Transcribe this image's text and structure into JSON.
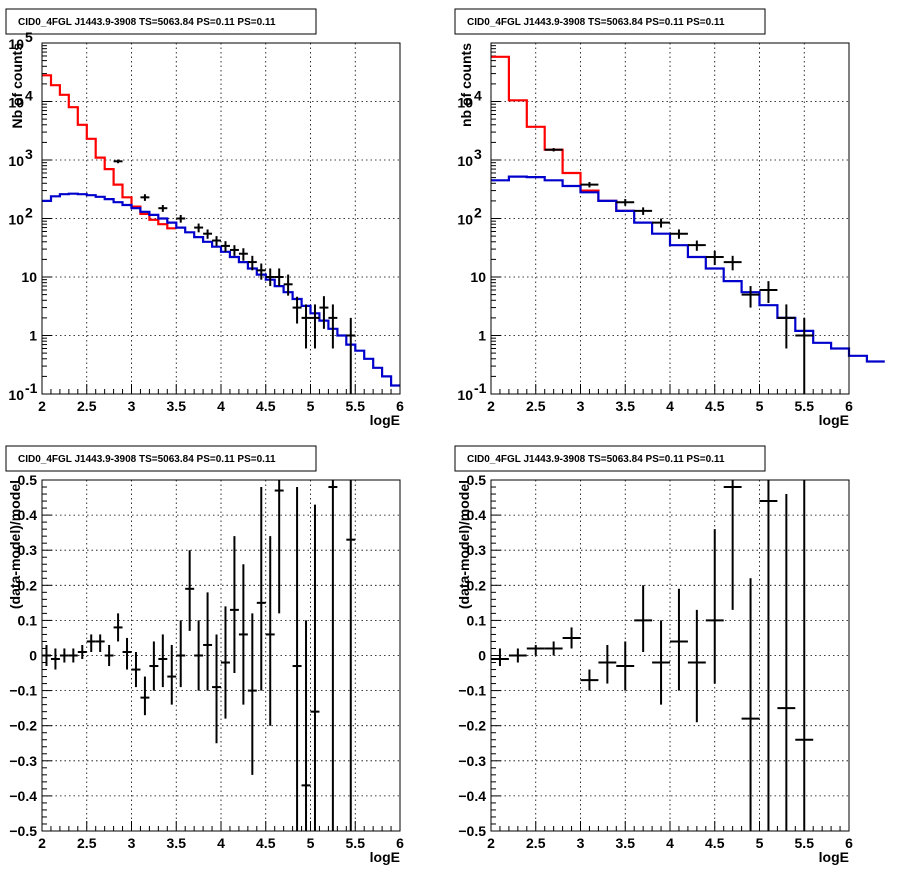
{
  "chart_data": [
    {
      "id": "tl",
      "type": "histogram",
      "title": "CID0_4FGL J1443.9-3908 TS=5063.84 PS=0.11 PS=0.11",
      "xlabel": "logE",
      "ylabel": "Nb of counts",
      "xlim": [
        2,
        6
      ],
      "ylim": [
        0.1,
        100000
      ],
      "yscale": "log",
      "grid": true,
      "xticks": [
        "2",
        "2.5",
        "3",
        "3.5",
        "4",
        "4.5",
        "5",
        "5.5",
        "6"
      ],
      "yticks": [
        {
          "v": 0.1,
          "t": "10"
        },
        {
          "v": 1,
          "t": "1"
        },
        {
          "v": 10,
          "t": "10"
        },
        {
          "v": 100,
          "t": "10"
        },
        {
          "v": 1000,
          "t": "10"
        },
        {
          "v": 10000,
          "t": "10"
        },
        {
          "v": 100000,
          "t": "10"
        }
      ],
      "yticks_sup": [
        "-1",
        "",
        "",
        "2",
        "3",
        "4",
        "5"
      ],
      "binwidth": 0.1,
      "series": [
        {
          "color": "#ff0000",
          "x0": 2.0,
          "values": [
            28000,
            19000,
            13000,
            8000,
            4000,
            2300,
            1100,
            700,
            380,
            230,
            160,
            120,
            95,
            80,
            68
          ]
        },
        {
          "color": "#0000cc",
          "x0": 2.0,
          "values": [
            200,
            240,
            260,
            265,
            260,
            250,
            235,
            215,
            190,
            170,
            150,
            130,
            115,
            100,
            85,
            70,
            58,
            48,
            40,
            33,
            27,
            22,
            18,
            14,
            11,
            9,
            7,
            5.5,
            4.2,
            3.2,
            2.4,
            1.8,
            1.3,
            1.0,
            0.7,
            0.55,
            0.4,
            0.28,
            0.2,
            0.14
          ]
        }
      ],
      "points": [
        {
          "x": 2.85,
          "y": 950,
          "ylo": 880,
          "yhi": 1020
        },
        {
          "x": 3.15,
          "y": 230,
          "ylo": 200,
          "yhi": 260
        },
        {
          "x": 3.35,
          "y": 150,
          "ylo": 130,
          "yhi": 170
        },
        {
          "x": 3.55,
          "y": 100,
          "ylo": 85,
          "yhi": 115
        },
        {
          "x": 3.75,
          "y": 70,
          "ylo": 58,
          "yhi": 82
        },
        {
          "x": 3.85,
          "y": 55,
          "ylo": 45,
          "yhi": 65
        },
        {
          "x": 3.95,
          "y": 42,
          "ylo": 34,
          "yhi": 50
        },
        {
          "x": 4.05,
          "y": 34,
          "ylo": 27,
          "yhi": 41
        },
        {
          "x": 4.15,
          "y": 29,
          "ylo": 23,
          "yhi": 35
        },
        {
          "x": 4.25,
          "y": 25,
          "ylo": 19,
          "yhi": 31
        },
        {
          "x": 4.35,
          "y": 18,
          "ylo": 13,
          "yhi": 23
        },
        {
          "x": 4.45,
          "y": 13,
          "ylo": 9,
          "yhi": 17
        },
        {
          "x": 4.55,
          "y": 10,
          "ylo": 7,
          "yhi": 14
        },
        {
          "x": 4.65,
          "y": 10,
          "ylo": 7,
          "yhi": 14
        },
        {
          "x": 4.75,
          "y": 7.5,
          "ylo": 4.8,
          "yhi": 11
        },
        {
          "x": 4.85,
          "y": 3,
          "ylo": 1.6,
          "yhi": 4.6
        },
        {
          "x": 4.95,
          "y": 2,
          "ylo": 0.6,
          "yhi": 3.4
        },
        {
          "x": 5.05,
          "y": 2,
          "ylo": 0.6,
          "yhi": 3.4
        },
        {
          "x": 5.15,
          "y": 3,
          "ylo": 1.3,
          "yhi": 4.7
        },
        {
          "x": 5.25,
          "y": 2,
          "ylo": 0.6,
          "yhi": 3.4
        },
        {
          "x": 5.45,
          "y": 1,
          "ylo": 0.1,
          "yhi": 2.0
        }
      ]
    },
    {
      "id": "tr",
      "type": "histogram",
      "title": "CID0_4FGL J1443.9-3908 TS=5063.84 PS=0.11 PS=0.11",
      "xlabel": "logE",
      "ylabel": "nb of counts",
      "xlim": [
        2,
        6
      ],
      "ylim": [
        0.1,
        100000
      ],
      "yscale": "log",
      "grid": true,
      "xticks": [
        "2",
        "2.5",
        "3",
        "3.5",
        "4",
        "4.5",
        "5",
        "5.5",
        "6"
      ],
      "yticks": [
        {
          "v": 0.1,
          "t": "10"
        },
        {
          "v": 1,
          "t": "1"
        },
        {
          "v": 10,
          "t": "10"
        },
        {
          "v": 100,
          "t": "10"
        },
        {
          "v": 1000,
          "t": "10"
        },
        {
          "v": 10000,
          "t": "10"
        }
      ],
      "yticks_sup": [
        "-1",
        "",
        "",
        "2",
        "3",
        "4"
      ],
      "binwidth": 0.2,
      "series": [
        {
          "color": "#ff0000",
          "x0": 2.0,
          "values": [
            58000,
            10500,
            3700,
            1500,
            600,
            300,
            200,
            135
          ]
        },
        {
          "color": "#0000cc",
          "x0": 2.0,
          "values": [
            450,
            520,
            510,
            450,
            360,
            280,
            200,
            135,
            85,
            55,
            35,
            22,
            14,
            8.5,
            5.5,
            3.3,
            2.0,
            1.2,
            0.75,
            0.6,
            0.45,
            0.36
          ]
        }
      ],
      "points": [
        {
          "x": 2.7,
          "y": 1500,
          "ylo": 1400,
          "yhi": 1600
        },
        {
          "x": 3.1,
          "y": 380,
          "ylo": 340,
          "yhi": 420
        },
        {
          "x": 3.5,
          "y": 190,
          "ylo": 165,
          "yhi": 215
        },
        {
          "x": 3.7,
          "y": 135,
          "ylo": 115,
          "yhi": 155
        },
        {
          "x": 3.9,
          "y": 85,
          "ylo": 70,
          "yhi": 100
        },
        {
          "x": 4.1,
          "y": 55,
          "ylo": 45,
          "yhi": 65
        },
        {
          "x": 4.3,
          "y": 35,
          "ylo": 28,
          "yhi": 42
        },
        {
          "x": 4.5,
          "y": 22,
          "ylo": 16,
          "yhi": 28
        },
        {
          "x": 4.7,
          "y": 18,
          "ylo": 13,
          "yhi": 23
        },
        {
          "x": 4.9,
          "y": 5,
          "ylo": 3,
          "yhi": 7
        },
        {
          "x": 5.1,
          "y": 6,
          "ylo": 3.6,
          "yhi": 8.5
        },
        {
          "x": 5.3,
          "y": 2,
          "ylo": 0.6,
          "yhi": 3.4
        },
        {
          "x": 5.5,
          "y": 1,
          "ylo": 0.1,
          "yhi": 2.0
        }
      ]
    },
    {
      "id": "bl",
      "type": "scatter",
      "title": "CID0_4FGL J1443.9-3908 TS=5063.84 PS=0.11 PS=0.11",
      "xlabel": "logE",
      "ylabel": "(data-model)/model",
      "xlim": [
        2,
        6
      ],
      "ylim": [
        -0.5,
        0.5
      ],
      "yscale": "linear",
      "grid": true,
      "xticks": [
        "2",
        "2.5",
        "3",
        "3.5",
        "4",
        "4.5",
        "5",
        "5.5",
        "6"
      ],
      "yticks": [
        {
          "v": -0.5,
          "t": "−0.5"
        },
        {
          "v": -0.4,
          "t": "−0.4"
        },
        {
          "v": -0.3,
          "t": "−0.3"
        },
        {
          "v": -0.2,
          "t": "−0.2"
        },
        {
          "v": -0.1,
          "t": "−0.1"
        },
        {
          "v": 0,
          "t": "0"
        },
        {
          "v": 0.1,
          "t": "0.1"
        },
        {
          "v": 0.2,
          "t": "0.2"
        },
        {
          "v": 0.3,
          "t": "0.3"
        },
        {
          "v": 0.4,
          "t": "0.4"
        },
        {
          "v": 0.5,
          "t": "0.5"
        }
      ],
      "binwidth": 0.1,
      "points": [
        {
          "x": 2.05,
          "y": 0.0,
          "ylo": -0.03,
          "yhi": 0.03
        },
        {
          "x": 2.15,
          "y": -0.01,
          "ylo": -0.04,
          "yhi": 0.02
        },
        {
          "x": 2.25,
          "y": 0.0,
          "ylo": -0.02,
          "yhi": 0.02
        },
        {
          "x": 2.35,
          "y": 0.0,
          "ylo": -0.02,
          "yhi": 0.02
        },
        {
          "x": 2.45,
          "y": 0.01,
          "ylo": -0.01,
          "yhi": 0.03
        },
        {
          "x": 2.55,
          "y": 0.04,
          "ylo": 0.01,
          "yhi": 0.06
        },
        {
          "x": 2.65,
          "y": 0.04,
          "ylo": 0.01,
          "yhi": 0.06
        },
        {
          "x": 2.75,
          "y": 0.0,
          "ylo": -0.03,
          "yhi": 0.03
        },
        {
          "x": 2.85,
          "y": 0.08,
          "ylo": 0.04,
          "yhi": 0.12
        },
        {
          "x": 2.95,
          "y": 0.01,
          "ylo": -0.04,
          "yhi": 0.05
        },
        {
          "x": 3.05,
          "y": -0.04,
          "ylo": -0.09,
          "yhi": 0.01
        },
        {
          "x": 3.15,
          "y": -0.12,
          "ylo": -0.17,
          "yhi": -0.06
        },
        {
          "x": 3.25,
          "y": -0.03,
          "ylo": -0.1,
          "yhi": 0.04
        },
        {
          "x": 3.35,
          "y": -0.01,
          "ylo": -0.09,
          "yhi": 0.06
        },
        {
          "x": 3.45,
          "y": -0.06,
          "ylo": -0.14,
          "yhi": 0.03
        },
        {
          "x": 3.55,
          "y": 0.0,
          "ylo": -0.09,
          "yhi": 0.1
        },
        {
          "x": 3.65,
          "y": 0.19,
          "ylo": 0.07,
          "yhi": 0.3
        },
        {
          "x": 3.75,
          "y": 0.0,
          "ylo": -0.1,
          "yhi": 0.1
        },
        {
          "x": 3.85,
          "y": 0.03,
          "ylo": -0.1,
          "yhi": 0.18
        },
        {
          "x": 3.95,
          "y": -0.09,
          "ylo": -0.25,
          "yhi": 0.06
        },
        {
          "x": 4.05,
          "y": -0.02,
          "ylo": -0.18,
          "yhi": 0.14
        },
        {
          "x": 4.15,
          "y": 0.13,
          "ylo": -0.05,
          "yhi": 0.34
        },
        {
          "x": 4.25,
          "y": 0.06,
          "ylo": -0.14,
          "yhi": 0.26
        },
        {
          "x": 4.35,
          "y": -0.1,
          "ylo": -0.34,
          "yhi": 0.12
        },
        {
          "x": 4.45,
          "y": 0.15,
          "ylo": -0.1,
          "yhi": 0.48
        },
        {
          "x": 4.55,
          "y": 0.06,
          "ylo": -0.2,
          "yhi": 0.34
        },
        {
          "x": 4.65,
          "y": 0.47,
          "ylo": 0.12,
          "yhi": 0.5
        },
        {
          "x": 4.85,
          "y": -0.03,
          "ylo": -0.5,
          "yhi": 0.48
        },
        {
          "x": 4.95,
          "y": -0.37,
          "ylo": -0.5,
          "yhi": 0.1
        },
        {
          "x": 5.05,
          "y": -0.16,
          "ylo": -0.5,
          "yhi": 0.43
        },
        {
          "x": 5.25,
          "y": 0.48,
          "ylo": -0.5,
          "yhi": 0.5
        },
        {
          "x": 5.45,
          "y": 0.33,
          "ylo": -0.5,
          "yhi": 0.5
        }
      ]
    },
    {
      "id": "br",
      "type": "scatter",
      "title": "CID0_4FGL J1443.9-3908 TS=5063.84 PS=0.11 PS=0.11",
      "xlabel": "logE",
      "ylabel": "(data-model)/model",
      "xlim": [
        2,
        6
      ],
      "ylim": [
        -0.5,
        0.5
      ],
      "yscale": "linear",
      "grid": true,
      "xticks": [
        "2",
        "2.5",
        "3",
        "3.5",
        "4",
        "4.5",
        "5",
        "5.5",
        "6"
      ],
      "yticks": [
        {
          "v": -0.5,
          "t": "−0.5"
        },
        {
          "v": -0.4,
          "t": "−0.4"
        },
        {
          "v": -0.3,
          "t": "−0.3"
        },
        {
          "v": -0.2,
          "t": "−0.2"
        },
        {
          "v": -0.1,
          "t": "−0.1"
        },
        {
          "v": 0,
          "t": "0"
        },
        {
          "v": 0.1,
          "t": "0.1"
        },
        {
          "v": 0.2,
          "t": "0.2"
        },
        {
          "v": 0.3,
          "t": "0.3"
        },
        {
          "v": 0.4,
          "t": "0.4"
        },
        {
          "v": 0.5,
          "t": "0.5"
        }
      ],
      "binwidth": 0.2,
      "points": [
        {
          "x": 2.1,
          "y": -0.01,
          "ylo": -0.03,
          "yhi": 0.02
        },
        {
          "x": 2.3,
          "y": 0.0,
          "ylo": -0.02,
          "yhi": 0.02
        },
        {
          "x": 2.5,
          "y": 0.02,
          "ylo": 0.0,
          "yhi": 0.03
        },
        {
          "x": 2.7,
          "y": 0.02,
          "ylo": 0.0,
          "yhi": 0.04
        },
        {
          "x": 2.9,
          "y": 0.05,
          "ylo": 0.02,
          "yhi": 0.08
        },
        {
          "x": 3.1,
          "y": -0.07,
          "ylo": -0.1,
          "yhi": -0.04
        },
        {
          "x": 3.3,
          "y": -0.02,
          "ylo": -0.08,
          "yhi": 0.03
        },
        {
          "x": 3.5,
          "y": -0.03,
          "ylo": -0.1,
          "yhi": 0.04
        },
        {
          "x": 3.7,
          "y": 0.1,
          "ylo": 0.01,
          "yhi": 0.2
        },
        {
          "x": 3.9,
          "y": -0.02,
          "ylo": -0.14,
          "yhi": 0.1
        },
        {
          "x": 4.1,
          "y": 0.04,
          "ylo": -0.1,
          "yhi": 0.19
        },
        {
          "x": 4.3,
          "y": -0.02,
          "ylo": -0.19,
          "yhi": 0.13
        },
        {
          "x": 4.5,
          "y": 0.1,
          "ylo": -0.08,
          "yhi": 0.36
        },
        {
          "x": 4.7,
          "y": 0.48,
          "ylo": 0.13,
          "yhi": 0.5
        },
        {
          "x": 4.9,
          "y": -0.18,
          "ylo": -0.5,
          "yhi": 0.22
        },
        {
          "x": 5.1,
          "y": 0.44,
          "ylo": -0.5,
          "yhi": 0.5
        },
        {
          "x": 5.3,
          "y": -0.15,
          "ylo": -0.5,
          "yhi": 0.46
        },
        {
          "x": 5.5,
          "y": -0.24,
          "ylo": -0.5,
          "yhi": 0.5
        }
      ]
    }
  ]
}
